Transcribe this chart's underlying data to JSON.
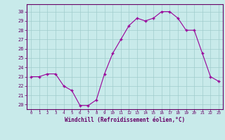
{
  "x": [
    0,
    1,
    2,
    3,
    4,
    5,
    6,
    7,
    8,
    9,
    10,
    11,
    12,
    13,
    14,
    15,
    16,
    17,
    18,
    19,
    20,
    21,
    22,
    23
  ],
  "y": [
    23,
    23,
    23.3,
    23.3,
    22,
    21.5,
    19.9,
    19.9,
    20.5,
    23.3,
    25.5,
    27,
    28.5,
    29.3,
    29,
    29.3,
    30,
    30,
    29.3,
    28,
    28,
    25.5,
    23,
    22.5
  ],
  "line_color": "#990099",
  "marker_color": "#990099",
  "bg_color": "#c8eaea",
  "grid_color": "#a0cccc",
  "xlabel": "Windchill (Refroidissement éolien,°C)",
  "ylabel_ticks": [
    20,
    21,
    22,
    23,
    24,
    25,
    26,
    27,
    28,
    29,
    30
  ],
  "ylim": [
    19.5,
    30.8
  ],
  "xlim": [
    -0.5,
    23.5
  ],
  "xtick_labels": [
    "0",
    "1",
    "2",
    "3",
    "4",
    "5",
    "6",
    "7",
    "8",
    "9",
    "10",
    "11",
    "12",
    "13",
    "14",
    "15",
    "16",
    "17",
    "18",
    "19",
    "20",
    "21",
    "22",
    "23"
  ]
}
